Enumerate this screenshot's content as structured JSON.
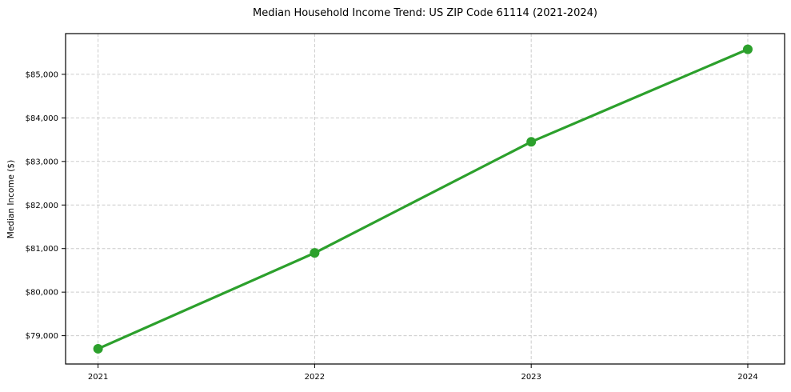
{
  "figure": {
    "background": "#ffffff"
  },
  "chart_data": {
    "type": "line",
    "title": "Median Household Income Trend: US ZIP Code 61114 (2021-2024)",
    "xlabel": "",
    "ylabel": "Median Income ($)",
    "x": [
      2021,
      2022,
      2023,
      2024
    ],
    "values": [
      78700,
      80900,
      83450,
      85575
    ],
    "series": [
      {
        "name": "Median Household Income",
        "values": [
          78700,
          80900,
          83450,
          85575
        ]
      }
    ],
    "x_ticks": [
      {
        "value": 2021,
        "label": "2021"
      },
      {
        "value": 2022,
        "label": "2022"
      },
      {
        "value": 2023,
        "label": "2023"
      },
      {
        "value": 2024,
        "label": "2024"
      }
    ],
    "y_ticks": [
      {
        "value": 79000,
        "label": "$79,000"
      },
      {
        "value": 80000,
        "label": "$80,000"
      },
      {
        "value": 81000,
        "label": "$81,000"
      },
      {
        "value": 82000,
        "label": "$82,000"
      },
      {
        "value": 83000,
        "label": "$83,000"
      },
      {
        "value": 84000,
        "label": "$84,000"
      },
      {
        "value": 85000,
        "label": "$85,000"
      }
    ],
    "xlim": [
      2020.85,
      2024.17
    ],
    "ylim": [
      78350,
      85935
    ],
    "grid": true,
    "grid_style": "dashed",
    "legend": "none",
    "marker_style": "circle",
    "line_color": "#2ca02c",
    "marker_color": "#2ca02c",
    "grid_color": "#cccccc",
    "axis_color": "#000000",
    "text_color": "#000000"
  }
}
